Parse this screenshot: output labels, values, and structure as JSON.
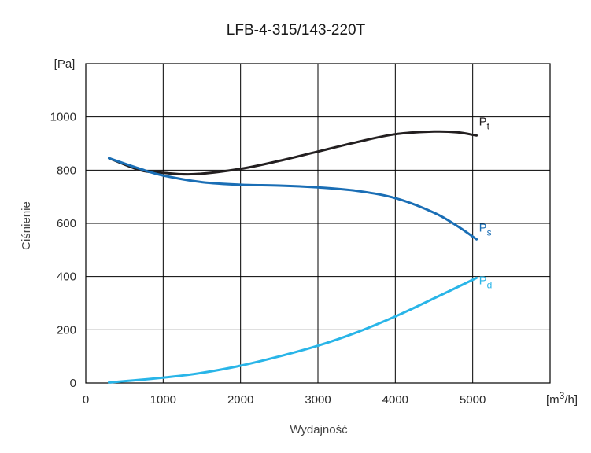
{
  "chart_data": {
    "type": "line",
    "title": "LFB-4-315/143-220T",
    "xlabel": "Wydajność",
    "ylabel": "Ciśnienie",
    "x_unit_prefix": "[m",
    "x_unit_exp": "3",
    "x_unit_suffix": "/h]",
    "y_unit": "[Pa]",
    "xlim": [
      0,
      6000
    ],
    "ylim": [
      0,
      1200
    ],
    "xticks": [
      0,
      1000,
      2000,
      3000,
      4000,
      5000
    ],
    "yticks": [
      0,
      200,
      400,
      600,
      800,
      1000
    ],
    "grid": true,
    "series": [
      {
        "name": "Pt",
        "label_main": "P",
        "label_sub": "t",
        "color": "#231f20",
        "x": [
          300,
          700,
          1000,
          1400,
          2000,
          2500,
          3000,
          3500,
          4000,
          4500,
          4800,
          5050
        ],
        "y": [
          845,
          800,
          790,
          785,
          805,
          835,
          870,
          905,
          935,
          945,
          942,
          930
        ]
      },
      {
        "name": "Ps",
        "label_main": "P",
        "label_sub": "s",
        "color": "#1a6eb5",
        "x": [
          300,
          700,
          1000,
          1500,
          2000,
          2500,
          3000,
          3500,
          4000,
          4500,
          4800,
          5050
        ],
        "y": [
          845,
          805,
          780,
          755,
          745,
          742,
          735,
          722,
          695,
          640,
          590,
          540
        ]
      },
      {
        "name": "Pd",
        "label_main": "P",
        "label_sub": "d",
        "color": "#29b5e8",
        "x": [
          300,
          1000,
          1500,
          2000,
          2500,
          3000,
          3500,
          4000,
          4500,
          5050
        ],
        "y": [
          2,
          20,
          38,
          65,
          100,
          140,
          190,
          250,
          318,
          395
        ]
      }
    ]
  }
}
